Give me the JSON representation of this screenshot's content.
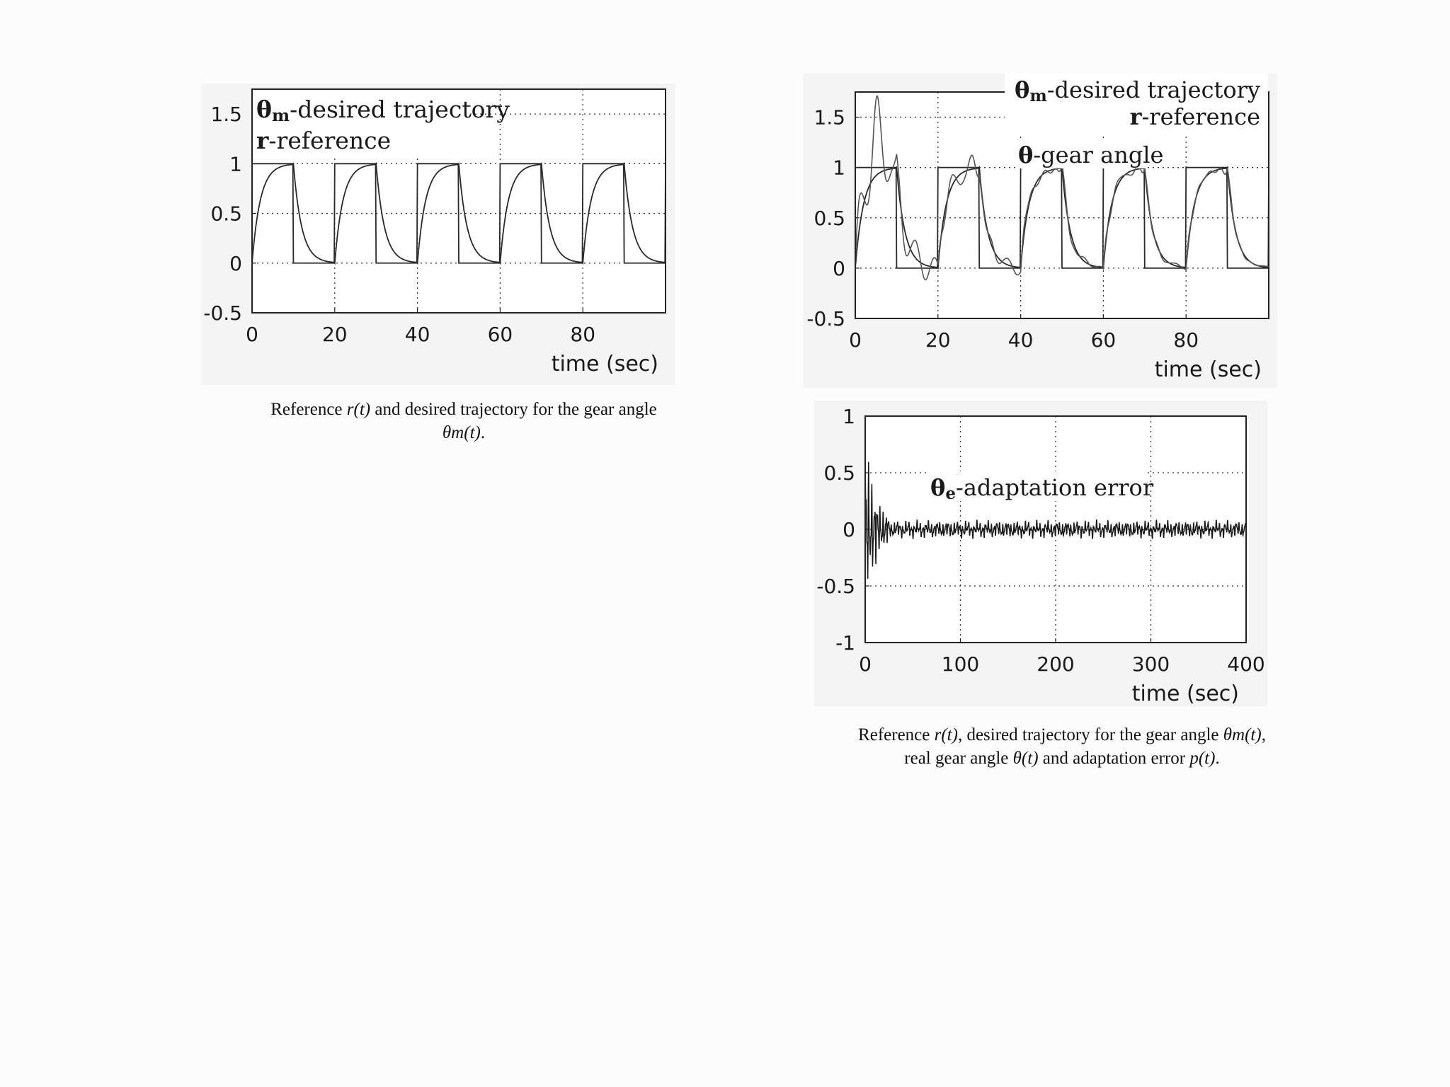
{
  "chart_data": [
    {
      "type": "line",
      "xlabel": "time (sec)",
      "ylabel": "",
      "xlim": [
        0,
        100
      ],
      "ylim": [
        -0.5,
        1.75
      ],
      "xticks": [
        "0",
        "20",
        "40",
        "60",
        "80"
      ],
      "yticks": [
        "-0.5",
        "0",
        "0.5",
        "1",
        "1.5"
      ],
      "grid": true,
      "legend_position": "top-left",
      "annotations": [
        {
          "symbol": "θ",
          "sub": "m",
          "text": "-desired trajectory"
        },
        {
          "symbol": "r",
          "sub": "",
          "text": "-reference"
        }
      ],
      "series": [
        {
          "name": "r-reference",
          "period": 20,
          "on": 10,
          "high": 1,
          "low": 0
        },
        {
          "name": "θm-desired trajectory",
          "time_constant": 2
        }
      ]
    },
    {
      "type": "line",
      "xlabel": "time (sec)",
      "ylabel": "",
      "xlim": [
        0,
        100
      ],
      "ylim": [
        -0.5,
        1.75
      ],
      "xticks": [
        "0",
        "20",
        "40",
        "60",
        "80"
      ],
      "yticks": [
        "-0.5",
        "0",
        "0.5",
        "1",
        "1.5"
      ],
      "grid": true,
      "legend_position": "top-right",
      "annotations": [
        {
          "symbol": "θ",
          "sub": "m",
          "text": "-desired trajectory"
        },
        {
          "symbol": "r",
          "sub": "",
          "text": "-reference"
        },
        {
          "symbol": "θ",
          "sub": "",
          "text": "-gear angle"
        }
      ],
      "series": [
        {
          "name": "r-reference",
          "period": 20,
          "on": 10,
          "high": 1,
          "low": 0
        },
        {
          "name": "θm-desired trajectory",
          "time_constant": 2
        },
        {
          "name": "θ-gear angle",
          "peak": 1.65,
          "peak_time": 5,
          "oscillation_decay": 25
        }
      ]
    },
    {
      "type": "line",
      "xlabel": "time (sec)",
      "ylabel": "",
      "xlim": [
        0,
        400
      ],
      "ylim": [
        -1,
        1
      ],
      "xticks": [
        "0",
        "100",
        "200",
        "300",
        "400"
      ],
      "yticks": [
        "-1",
        "-0.5",
        "0",
        "0.5",
        "1"
      ],
      "grid": true,
      "annotations": [
        {
          "symbol": "θ",
          "sub": "e",
          "text": "-adaptation error"
        }
      ],
      "series": [
        {
          "name": "θe-adaptation error",
          "initial_peak": 0.8,
          "initial_trough": -0.65,
          "steady_amplitude": 0.07
        }
      ]
    }
  ],
  "captions": {
    "left": {
      "pre": "Reference ",
      "r": "r(t)",
      "mid": " and desired  trajectory for the gear angle",
      "theta_m": "θm(t)",
      "end": "."
    },
    "right": {
      "line1_pre": "Reference ",
      "r": "r(t)",
      "line1_mid": ", desired  trajectory for the gear angle ",
      "theta_m": "θm(t)",
      "line1_end": ",",
      "line2_pre": "real gear angle ",
      "theta": "θ(t)",
      "line2_mid": " and adaptation error ",
      "p": "p(t)",
      "line2_end": "."
    }
  }
}
